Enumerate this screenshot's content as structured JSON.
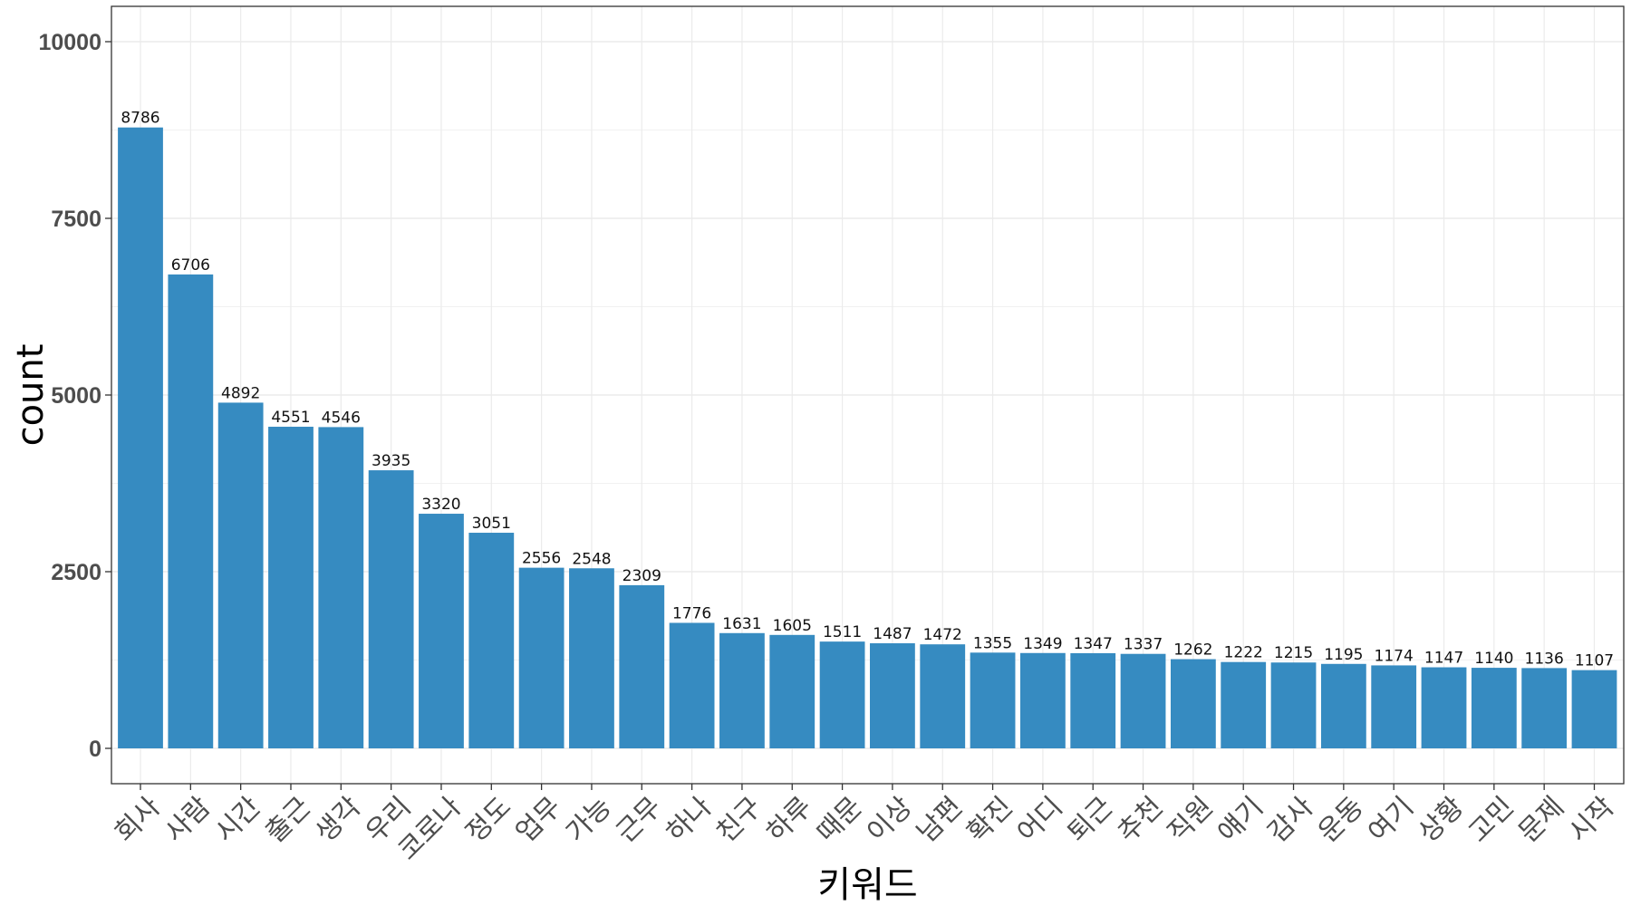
{
  "chart_data": {
    "type": "bar",
    "title": "",
    "xlabel": "키워드",
    "ylabel": "count",
    "ylim": [
      0,
      10500
    ],
    "yticks": [
      0,
      2500,
      5000,
      7500,
      10000
    ],
    "ytick_labels": [
      "0",
      "2500",
      "5000",
      "7500",
      "10000"
    ],
    "grid": true,
    "bar_color": "#368bc1",
    "categories": [
      "회사",
      "사람",
      "시간",
      "출근",
      "생각",
      "우리",
      "코로나",
      "정도",
      "업무",
      "가능",
      "근무",
      "하나",
      "친구",
      "하루",
      "때문",
      "이상",
      "남편",
      "확진",
      "어디",
      "퇴근",
      "추천",
      "직원",
      "얘기",
      "감사",
      "운동",
      "여기",
      "상황",
      "고민",
      "문제",
      "시작"
    ],
    "values": [
      8786,
      6706,
      4892,
      4551,
      4546,
      3935,
      3320,
      3051,
      2556,
      2548,
      2309,
      1776,
      1631,
      1605,
      1511,
      1487,
      1472,
      1355,
      1349,
      1347,
      1337,
      1262,
      1222,
      1215,
      1195,
      1174,
      1147,
      1140,
      1136,
      1107
    ],
    "value_labels": [
      "8786",
      "6706",
      "4892",
      "4551",
      "4546",
      "3935",
      "3320",
      "3051",
      "2556",
      "2548",
      "2309",
      "1776",
      "1631",
      "1605",
      "1511",
      "1487",
      "1472",
      "1355",
      "1349",
      "1347",
      "1337",
      "1262",
      "1222",
      "1215",
      "1195",
      "1174",
      "1147",
      "1140",
      "1136",
      "1107"
    ]
  }
}
